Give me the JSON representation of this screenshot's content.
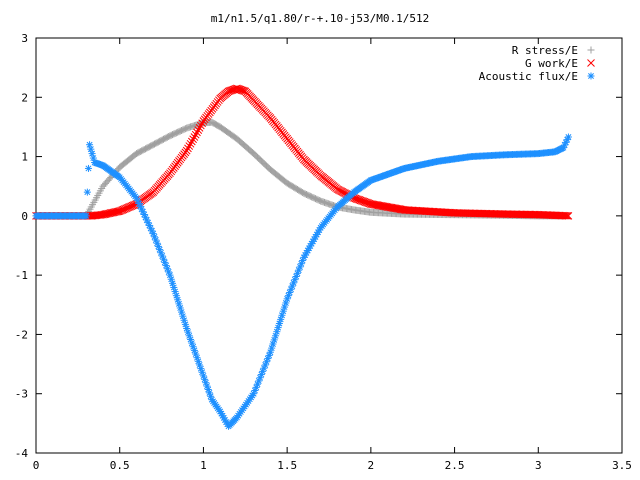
{
  "chart_data": {
    "type": "scatter",
    "title": "m1/n1.5/q1.80/r-+.10-j53/M0.1/512",
    "xlabel": "",
    "ylabel": "",
    "xlim": [
      0,
      3.5
    ],
    "ylim": [
      -4,
      3
    ],
    "x_ticks": [
      0,
      0.5,
      1,
      1.5,
      2,
      2.5,
      3,
      3.5
    ],
    "x_tick_labels": [
      "0",
      "0.5",
      "1",
      "1.5",
      "2",
      "2.5",
      "3",
      "3.5"
    ],
    "y_ticks": [
      -4,
      -3,
      -2,
      -1,
      0,
      1,
      2,
      3
    ],
    "y_tick_labels": [
      "-4",
      "-3",
      "-2",
      "-1",
      "0",
      "1",
      "2",
      "3"
    ],
    "grid": false,
    "legend_position": "top-right",
    "series": [
      {
        "name": "R stress/E",
        "marker": "plus",
        "color": "#a0a0a0",
        "points": [
          [
            0.0,
            0.0
          ],
          [
            0.1,
            0.0
          ],
          [
            0.2,
            0.0
          ],
          [
            0.3,
            0.0
          ],
          [
            0.33,
            0.15
          ],
          [
            0.4,
            0.5
          ],
          [
            0.5,
            0.82
          ],
          [
            0.6,
            1.05
          ],
          [
            0.7,
            1.2
          ],
          [
            0.8,
            1.35
          ],
          [
            0.9,
            1.48
          ],
          [
            1.0,
            1.57
          ],
          [
            1.05,
            1.58
          ],
          [
            1.1,
            1.5
          ],
          [
            1.2,
            1.3
          ],
          [
            1.3,
            1.05
          ],
          [
            1.4,
            0.78
          ],
          [
            1.5,
            0.55
          ],
          [
            1.6,
            0.38
          ],
          [
            1.7,
            0.25
          ],
          [
            1.8,
            0.15
          ],
          [
            1.9,
            0.1
          ],
          [
            2.0,
            0.06
          ],
          [
            2.2,
            0.03
          ],
          [
            2.5,
            0.02
          ],
          [
            2.8,
            0.01
          ],
          [
            3.0,
            0.0
          ],
          [
            3.15,
            0.0
          ]
        ]
      },
      {
        "name": "G work/E",
        "marker": "cross",
        "color": "#ff0000",
        "points": [
          [
            0.0,
            0.0
          ],
          [
            0.1,
            0.0
          ],
          [
            0.2,
            0.0
          ],
          [
            0.3,
            0.0
          ],
          [
            0.33,
            0.0
          ],
          [
            0.4,
            0.02
          ],
          [
            0.5,
            0.08
          ],
          [
            0.6,
            0.2
          ],
          [
            0.7,
            0.4
          ],
          [
            0.8,
            0.72
          ],
          [
            0.9,
            1.1
          ],
          [
            1.0,
            1.6
          ],
          [
            1.1,
            1.98
          ],
          [
            1.15,
            2.1
          ],
          [
            1.2,
            2.15
          ],
          [
            1.25,
            2.1
          ],
          [
            1.3,
            1.95
          ],
          [
            1.4,
            1.65
          ],
          [
            1.5,
            1.3
          ],
          [
            1.6,
            0.95
          ],
          [
            1.7,
            0.68
          ],
          [
            1.8,
            0.45
          ],
          [
            1.9,
            0.3
          ],
          [
            2.0,
            0.2
          ],
          [
            2.2,
            0.1
          ],
          [
            2.5,
            0.05
          ],
          [
            2.8,
            0.03
          ],
          [
            3.0,
            0.02
          ],
          [
            3.18,
            0.0
          ]
        ]
      },
      {
        "name": "Acoustic flux/E",
        "marker": "star",
        "color": "#1e90ff",
        "points": [
          [
            0.0,
            0.0
          ],
          [
            0.1,
            0.0
          ],
          [
            0.2,
            0.0
          ],
          [
            0.3,
            0.0
          ],
          [
            0.32,
            1.2
          ],
          [
            0.35,
            0.9
          ],
          [
            0.4,
            0.85
          ],
          [
            0.5,
            0.65
          ],
          [
            0.6,
            0.3
          ],
          [
            0.7,
            -0.3
          ],
          [
            0.8,
            -1.0
          ],
          [
            0.9,
            -1.9
          ],
          [
            1.0,
            -2.7
          ],
          [
            1.05,
            -3.1
          ],
          [
            1.1,
            -3.3
          ],
          [
            1.15,
            -3.55
          ],
          [
            1.2,
            -3.4
          ],
          [
            1.3,
            -3.0
          ],
          [
            1.4,
            -2.3
          ],
          [
            1.5,
            -1.4
          ],
          [
            1.6,
            -0.7
          ],
          [
            1.7,
            -0.2
          ],
          [
            1.8,
            0.15
          ],
          [
            1.9,
            0.4
          ],
          [
            2.0,
            0.6
          ],
          [
            2.2,
            0.8
          ],
          [
            2.4,
            0.92
          ],
          [
            2.6,
            1.0
          ],
          [
            2.8,
            1.03
          ],
          [
            3.0,
            1.05
          ],
          [
            3.1,
            1.08
          ],
          [
            3.15,
            1.15
          ],
          [
            3.18,
            1.33
          ]
        ]
      }
    ]
  }
}
